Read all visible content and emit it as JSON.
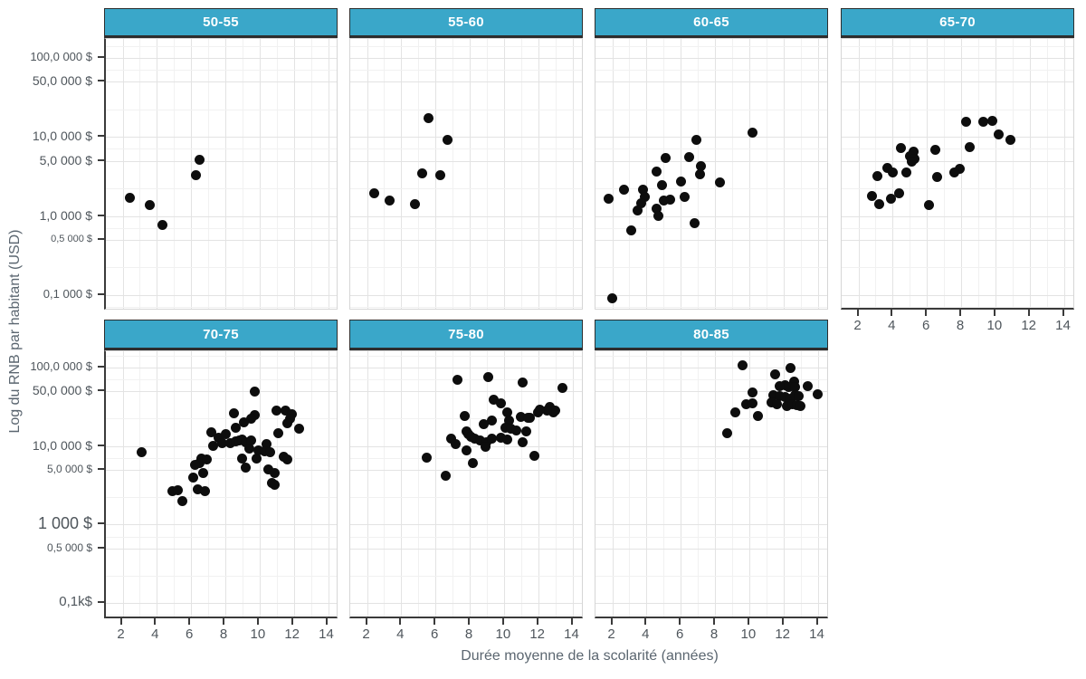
{
  "chart_data": {
    "type": "scatter",
    "title": "",
    "xlabel": "Durée moyenne de la scolarité (années)",
    "ylabel": "Log du RNB par habitant (USD)",
    "x_ticks": [
      2,
      4,
      6,
      8,
      10,
      12,
      14
    ],
    "x_minor": [
      3,
      5,
      7,
      9,
      11,
      13
    ],
    "xlim": [
      1,
      14.7
    ],
    "y_scale": "log10",
    "ylim": [
      66,
      160000
    ],
    "y_major": [
      100000,
      50000,
      10000,
      5000,
      1000,
      500,
      100
    ],
    "y_minor": [
      141421,
      70711,
      22361,
      7071,
      2236,
      707,
      224,
      71
    ],
    "grid": true,
    "legend": "none",
    "marker_color": "#0d0d0d",
    "strip_fill": "#3aa7c9",
    "strip_text_color": "#ffffff",
    "y_axis_rows": [
      {
        "labels": [
          {
            "v": 100000,
            "t": "100,0 000 $",
            "s": 13
          },
          {
            "v": 50000,
            "t": "50,0 000 $",
            "s": 14
          },
          {
            "v": 10000,
            "t": "10,0 000 $",
            "s": 14
          },
          {
            "v": 5000,
            "t": "5,0 000 $",
            "s": 14
          },
          {
            "v": 1000,
            "t": "1,0 000 $",
            "s": 14
          },
          {
            "v": 500,
            "t": "0,5 000 $",
            "s": 11
          },
          {
            "v": 100,
            "t": "0,1 000 $",
            "s": 13
          }
        ]
      },
      {
        "labels": [
          {
            "v": 100000,
            "t": "100,0 000 $",
            "s": 13
          },
          {
            "v": 50000,
            "t": "50,0 000 $",
            "s": 14
          },
          {
            "v": 10000,
            "t": "10,0 000 $",
            "s": 14
          },
          {
            "v": 5000,
            "t": "5,0 000 $",
            "s": 12
          },
          {
            "v": 1000,
            "t": "1 000 $",
            "s": 18
          },
          {
            "v": 500,
            "t": "0,5 000 $",
            "s": 12
          },
          {
            "v": 100,
            "t": "0,1k$",
            "s": 15
          }
        ]
      }
    ],
    "panels": [
      {
        "label": "50-55",
        "row": 0,
        "col": 0,
        "points": [
          [
            2.4,
            1700
          ],
          [
            3.6,
            1360
          ],
          [
            4.3,
            780
          ],
          [
            6.5,
            5100
          ],
          [
            6.3,
            3250
          ]
        ]
      },
      {
        "label": "55-60",
        "row": 0,
        "col": 1,
        "points": [
          [
            5.6,
            17400
          ],
          [
            6.7,
            9300
          ],
          [
            5.2,
            3500
          ],
          [
            6.3,
            3270
          ],
          [
            2.4,
            1950
          ],
          [
            3.3,
            1590
          ],
          [
            4.8,
            1410
          ]
        ]
      },
      {
        "label": "60-65",
        "row": 0,
        "col": 2,
        "points": [
          [
            10.2,
            11500
          ],
          [
            6.9,
            9300
          ],
          [
            6.5,
            5600
          ],
          [
            5.1,
            5500
          ],
          [
            7.2,
            4250
          ],
          [
            7.1,
            3350
          ],
          [
            4.6,
            3650
          ],
          [
            6.0,
            2770
          ],
          [
            8.3,
            2660
          ],
          [
            4.9,
            2450
          ],
          [
            2.7,
            2160
          ],
          [
            3.8,
            2160
          ],
          [
            3.9,
            1740
          ],
          [
            1.8,
            1650
          ],
          [
            5.4,
            1600
          ],
          [
            6.2,
            1740
          ],
          [
            5.0,
            1580
          ],
          [
            3.7,
            1450
          ],
          [
            3.5,
            1170
          ],
          [
            4.6,
            1230
          ],
          [
            4.7,
            1000
          ],
          [
            6.8,
            810
          ],
          [
            3.1,
            650
          ],
          [
            2.0,
            92
          ]
        ]
      },
      {
        "label": "65-70",
        "row": 0,
        "col": 3,
        "points": [
          [
            8.3,
            15600
          ],
          [
            9.3,
            15800
          ],
          [
            9.8,
            16000
          ],
          [
            10.2,
            10700
          ],
          [
            10.9,
            9100
          ],
          [
            8.5,
            7450
          ],
          [
            4.5,
            7250
          ],
          [
            6.5,
            6900
          ],
          [
            5.2,
            6600
          ],
          [
            5.0,
            5800
          ],
          [
            5.3,
            5250
          ],
          [
            5.1,
            4900
          ],
          [
            3.7,
            4100
          ],
          [
            7.9,
            3950
          ],
          [
            7.6,
            3570
          ],
          [
            4.0,
            3570
          ],
          [
            3.1,
            3220
          ],
          [
            4.8,
            3520
          ],
          [
            6.6,
            3080
          ],
          [
            2.8,
            1790
          ],
          [
            4.4,
            1930
          ],
          [
            3.9,
            1640
          ],
          [
            3.2,
            1400
          ],
          [
            6.1,
            1390
          ]
        ]
      },
      {
        "label": "70-75",
        "row": 1,
        "col": 0,
        "points": [
          [
            9.7,
            49000
          ],
          [
            8.5,
            26500
          ],
          [
            9.7,
            25100
          ],
          [
            9.5,
            22400
          ],
          [
            11.0,
            28200
          ],
          [
            11.5,
            28400
          ],
          [
            11.9,
            25300
          ],
          [
            11.8,
            22200
          ],
          [
            11.6,
            19400
          ],
          [
            12.3,
            16600
          ],
          [
            8.6,
            17300
          ],
          [
            9.1,
            20000
          ],
          [
            7.2,
            14900
          ],
          [
            7.6,
            12700
          ],
          [
            8.0,
            14200
          ],
          [
            7.3,
            10200
          ],
          [
            7.8,
            10800
          ],
          [
            8.3,
            10800
          ],
          [
            8.6,
            11500
          ],
          [
            8.8,
            11700
          ],
          [
            9.0,
            12000
          ],
          [
            9.2,
            11300
          ],
          [
            9.5,
            11900
          ],
          [
            10.4,
            10600
          ],
          [
            11.1,
            14700
          ],
          [
            9.4,
            9400
          ],
          [
            9.9,
            8700
          ],
          [
            10.3,
            8600
          ],
          [
            3.1,
            8400
          ],
          [
            9.0,
            6900
          ],
          [
            9.8,
            7000
          ],
          [
            10.6,
            8300
          ],
          [
            11.4,
            7300
          ],
          [
            11.6,
            6700
          ],
          [
            6.6,
            7000
          ],
          [
            6.5,
            6100
          ],
          [
            6.2,
            5800
          ],
          [
            6.9,
            6700
          ],
          [
            9.2,
            5300
          ],
          [
            10.5,
            5000
          ],
          [
            10.9,
            4500
          ],
          [
            6.7,
            4500
          ],
          [
            6.1,
            4000
          ],
          [
            10.7,
            3400
          ],
          [
            10.9,
            3200
          ],
          [
            6.4,
            2850
          ],
          [
            6.8,
            2700
          ],
          [
            4.9,
            2700
          ],
          [
            5.2,
            2750
          ],
          [
            5.5,
            2000
          ]
        ]
      },
      {
        "label": "75-80",
        "row": 1,
        "col": 1,
        "points": [
          [
            7.3,
            70000
          ],
          [
            9.1,
            75500
          ],
          [
            11.1,
            65400
          ],
          [
            13.4,
            55300
          ],
          [
            9.4,
            39100
          ],
          [
            9.8,
            35200
          ],
          [
            10.2,
            27200
          ],
          [
            12.7,
            31600
          ],
          [
            12.9,
            27200
          ],
          [
            13.0,
            28700
          ],
          [
            12.5,
            28600
          ],
          [
            12.0,
            27000
          ],
          [
            12.1,
            28800
          ],
          [
            7.7,
            24200
          ],
          [
            10.3,
            21100
          ],
          [
            11.0,
            23700
          ],
          [
            11.5,
            23100
          ],
          [
            11.4,
            23000
          ],
          [
            9.3,
            21100
          ],
          [
            8.8,
            18900
          ],
          [
            10.1,
            16900
          ],
          [
            10.4,
            16800
          ],
          [
            11.3,
            15600
          ],
          [
            7.8,
            15400
          ],
          [
            7.9,
            14300
          ],
          [
            10.7,
            16000
          ],
          [
            8.1,
            13200
          ],
          [
            8.3,
            12500
          ],
          [
            6.9,
            12600
          ],
          [
            8.6,
            11700
          ],
          [
            9.0,
            11100
          ],
          [
            9.3,
            12600
          ],
          [
            9.8,
            12900
          ],
          [
            10.2,
            12100
          ],
          [
            7.2,
            10500
          ],
          [
            8.9,
            9800
          ],
          [
            11.1,
            11200
          ],
          [
            7.8,
            8900
          ],
          [
            5.5,
            7150
          ],
          [
            11.8,
            7450
          ],
          [
            8.2,
            6150
          ],
          [
            6.6,
            4150
          ]
        ]
      },
      {
        "label": "80-85",
        "row": 1,
        "col": 2,
        "points": [
          [
            9.6,
            107000
          ],
          [
            12.4,
            100000
          ],
          [
            11.5,
            81500
          ],
          [
            12.6,
            66500
          ],
          [
            12.1,
            59700
          ],
          [
            11.8,
            57600
          ],
          [
            12.3,
            56000
          ],
          [
            12.7,
            56500
          ],
          [
            13.4,
            58000
          ],
          [
            10.2,
            48000
          ],
          [
            11.4,
            45000
          ],
          [
            11.8,
            43600
          ],
          [
            12.1,
            42000
          ],
          [
            12.4,
            40500
          ],
          [
            12.7,
            45000
          ],
          [
            12.9,
            43000
          ],
          [
            14.0,
            45300
          ],
          [
            11.3,
            35700
          ],
          [
            11.6,
            34500
          ],
          [
            12.2,
            32400
          ],
          [
            12.5,
            34500
          ],
          [
            12.8,
            33700
          ],
          [
            13.0,
            32400
          ],
          [
            9.8,
            34000
          ],
          [
            10.2,
            35200
          ],
          [
            9.2,
            27200
          ],
          [
            10.5,
            23900
          ],
          [
            8.7,
            14500
          ]
        ]
      }
    ]
  }
}
